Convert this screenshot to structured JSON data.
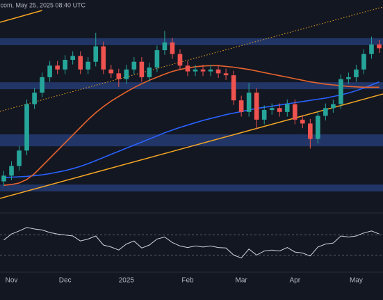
{
  "header": ".com, May 25, 2025 08:40 UTC",
  "chart_data": {
    "type": "candlestick",
    "categories": [
      null,
      "Nov",
      null,
      null,
      null,
      null,
      null,
      null,
      "Dec",
      null,
      null,
      null,
      null,
      null,
      null,
      null,
      "2025",
      null,
      null,
      null,
      null,
      null,
      null,
      null,
      "Feb",
      null,
      null,
      null,
      null,
      null,
      null,
      "Mar",
      null,
      null,
      null,
      null,
      null,
      null,
      "Apr",
      null,
      null,
      null,
      null,
      null,
      null,
      null,
      "May",
      null,
      null,
      null
    ],
    "ohlc": [
      [
        68000,
        70700,
        66800,
        69500
      ],
      [
        69500,
        73200,
        68300,
        72000
      ],
      [
        72000,
        77200,
        70800,
        76000
      ],
      [
        76000,
        89200,
        74800,
        88000
      ],
      [
        88000,
        92200,
        86800,
        91000
      ],
      [
        91000,
        96200,
        89800,
        95000
      ],
      [
        95000,
        99200,
        93800,
        98000
      ],
      [
        98000,
        99200,
        95800,
        97000
      ],
      [
        97000,
        100700,
        95800,
        99500
      ],
      [
        99500,
        101700,
        98300,
        100500
      ],
      [
        100500,
        101700,
        95800,
        97000
      ],
      [
        97000,
        100200,
        95800,
        99000
      ],
      [
        99000,
        106500,
        97800,
        103000
      ],
      [
        103000,
        104200,
        95800,
        97000
      ],
      [
        97000,
        98200,
        94800,
        96000
      ],
      [
        96000,
        97200,
        92500,
        94500
      ],
      [
        94500,
        98200,
        93300,
        97000
      ],
      [
        97000,
        100200,
        95800,
        99000
      ],
      [
        99000,
        100200,
        93800,
        95000
      ],
      [
        95000,
        98700,
        93800,
        97500
      ],
      [
        97500,
        103200,
        96300,
        102000
      ],
      [
        102000,
        107000,
        100800,
        104000
      ],
      [
        104000,
        105200,
        99800,
        101000
      ],
      [
        101000,
        102200,
        96800,
        98000
      ],
      [
        98000,
        99200,
        95300,
        96500
      ],
      [
        96500,
        98200,
        95300,
        97000
      ],
      [
        97000,
        98200,
        95300,
        96500
      ],
      [
        96500,
        98200,
        95300,
        97000
      ],
      [
        97000,
        98200,
        94800,
        96000
      ],
      [
        96000,
        97200,
        94300,
        95500
      ],
      [
        95500,
        96700,
        87800,
        89000
      ],
      [
        89000,
        90200,
        84800,
        86000
      ],
      [
        86000,
        93500,
        84800,
        91000
      ],
      [
        91000,
        92200,
        81500,
        84000
      ],
      [
        84000,
        87700,
        82800,
        86500
      ],
      [
        86500,
        88200,
        85300,
        87000
      ],
      [
        87000,
        88200,
        84800,
        86000
      ],
      [
        86000,
        89200,
        84800,
        88000
      ],
      [
        88000,
        89200,
        82800,
        84000
      ],
      [
        84000,
        85200,
        81800,
        83000
      ],
      [
        83000,
        84200,
        76500,
        79000
      ],
      [
        79000,
        86200,
        77800,
        85000
      ],
      [
        85000,
        88200,
        83800,
        87000
      ],
      [
        87000,
        89200,
        85800,
        88000
      ],
      [
        88000,
        95700,
        86800,
        94500
      ],
      [
        94500,
        96200,
        93300,
        95000
      ],
      [
        95000,
        98200,
        93800,
        97000
      ],
      [
        97000,
        102200,
        95800,
        101000
      ],
      [
        101000,
        105500,
        99800,
        103500
      ],
      [
        103500,
        104700,
        101300,
        102500
      ]
    ],
    "up_color": "#26a69a",
    "down_color": "#ef5350",
    "series": [
      {
        "color": "#2962ff",
        "values": [
          69000,
          69100,
          69200,
          69300,
          69500,
          69700,
          70000,
          70400,
          70800,
          71300,
          71900,
          72600,
          73400,
          74200,
          75000,
          75800,
          76600,
          77400,
          78200,
          79000,
          79800,
          80600,
          81300,
          82000,
          82600,
          83200,
          83800,
          84300,
          84800,
          85300,
          85700,
          86100,
          86500,
          86900,
          87200,
          87500,
          87800,
          88100,
          88400,
          88700,
          89000,
          89300,
          89600,
          90000,
          90400,
          90900,
          91500,
          92200,
          93000,
          93800
        ]
      },
      {
        "color": "#e8642c",
        "values": [
          67000,
          67200,
          67600,
          68500,
          70000,
          72000,
          74000,
          76000,
          78000,
          80000,
          82000,
          84000,
          85800,
          87400,
          88800,
          90000,
          91200,
          92300,
          93300,
          94200,
          95000,
          95800,
          96500,
          97000,
          97400,
          97700,
          97900,
          98000,
          98000,
          97800,
          97600,
          97300,
          97000,
          96600,
          96200,
          95800,
          95400,
          95000,
          94600,
          94200,
          93800,
          93500,
          93200,
          93000,
          92800,
          92600,
          92500,
          92400,
          92400,
          92400
        ]
      }
    ],
    "ylim": [
      60000,
      115000
    ],
    "zones": [
      [
        103300,
        105100
      ],
      [
        91900,
        93700
      ],
      [
        77100,
        80200
      ],
      [
        65400,
        67200
      ]
    ],
    "zone_color": "#2d4f9e",
    "trendlines": [
      {
        "from": 63600,
        "to": 90650,
        "style": "solid",
        "color": "#f5a623"
      },
      {
        "from": 86150,
        "to": 113200,
        "style": "dotted",
        "color": "#f5a623"
      },
      {
        "from": 109230,
        "to": 112300,
        "style": "solid",
        "color": "#f5a623"
      }
    ],
    "rsi": {
      "color": "#d1d4dc",
      "values": [
        60,
        72,
        78,
        85,
        82,
        80,
        75,
        72,
        70,
        68,
        58,
        62,
        68,
        50,
        46,
        40,
        52,
        58,
        44,
        50,
        62,
        66,
        55,
        48,
        45,
        48,
        46,
        48,
        45,
        44,
        30,
        24,
        42,
        30,
        38,
        40,
        38,
        45,
        36,
        34,
        28,
        46,
        52,
        54,
        68,
        66,
        68,
        74,
        78,
        72
      ],
      "ylim": [
        0,
        100
      ],
      "levels": [
        70,
        30
      ]
    }
  }
}
